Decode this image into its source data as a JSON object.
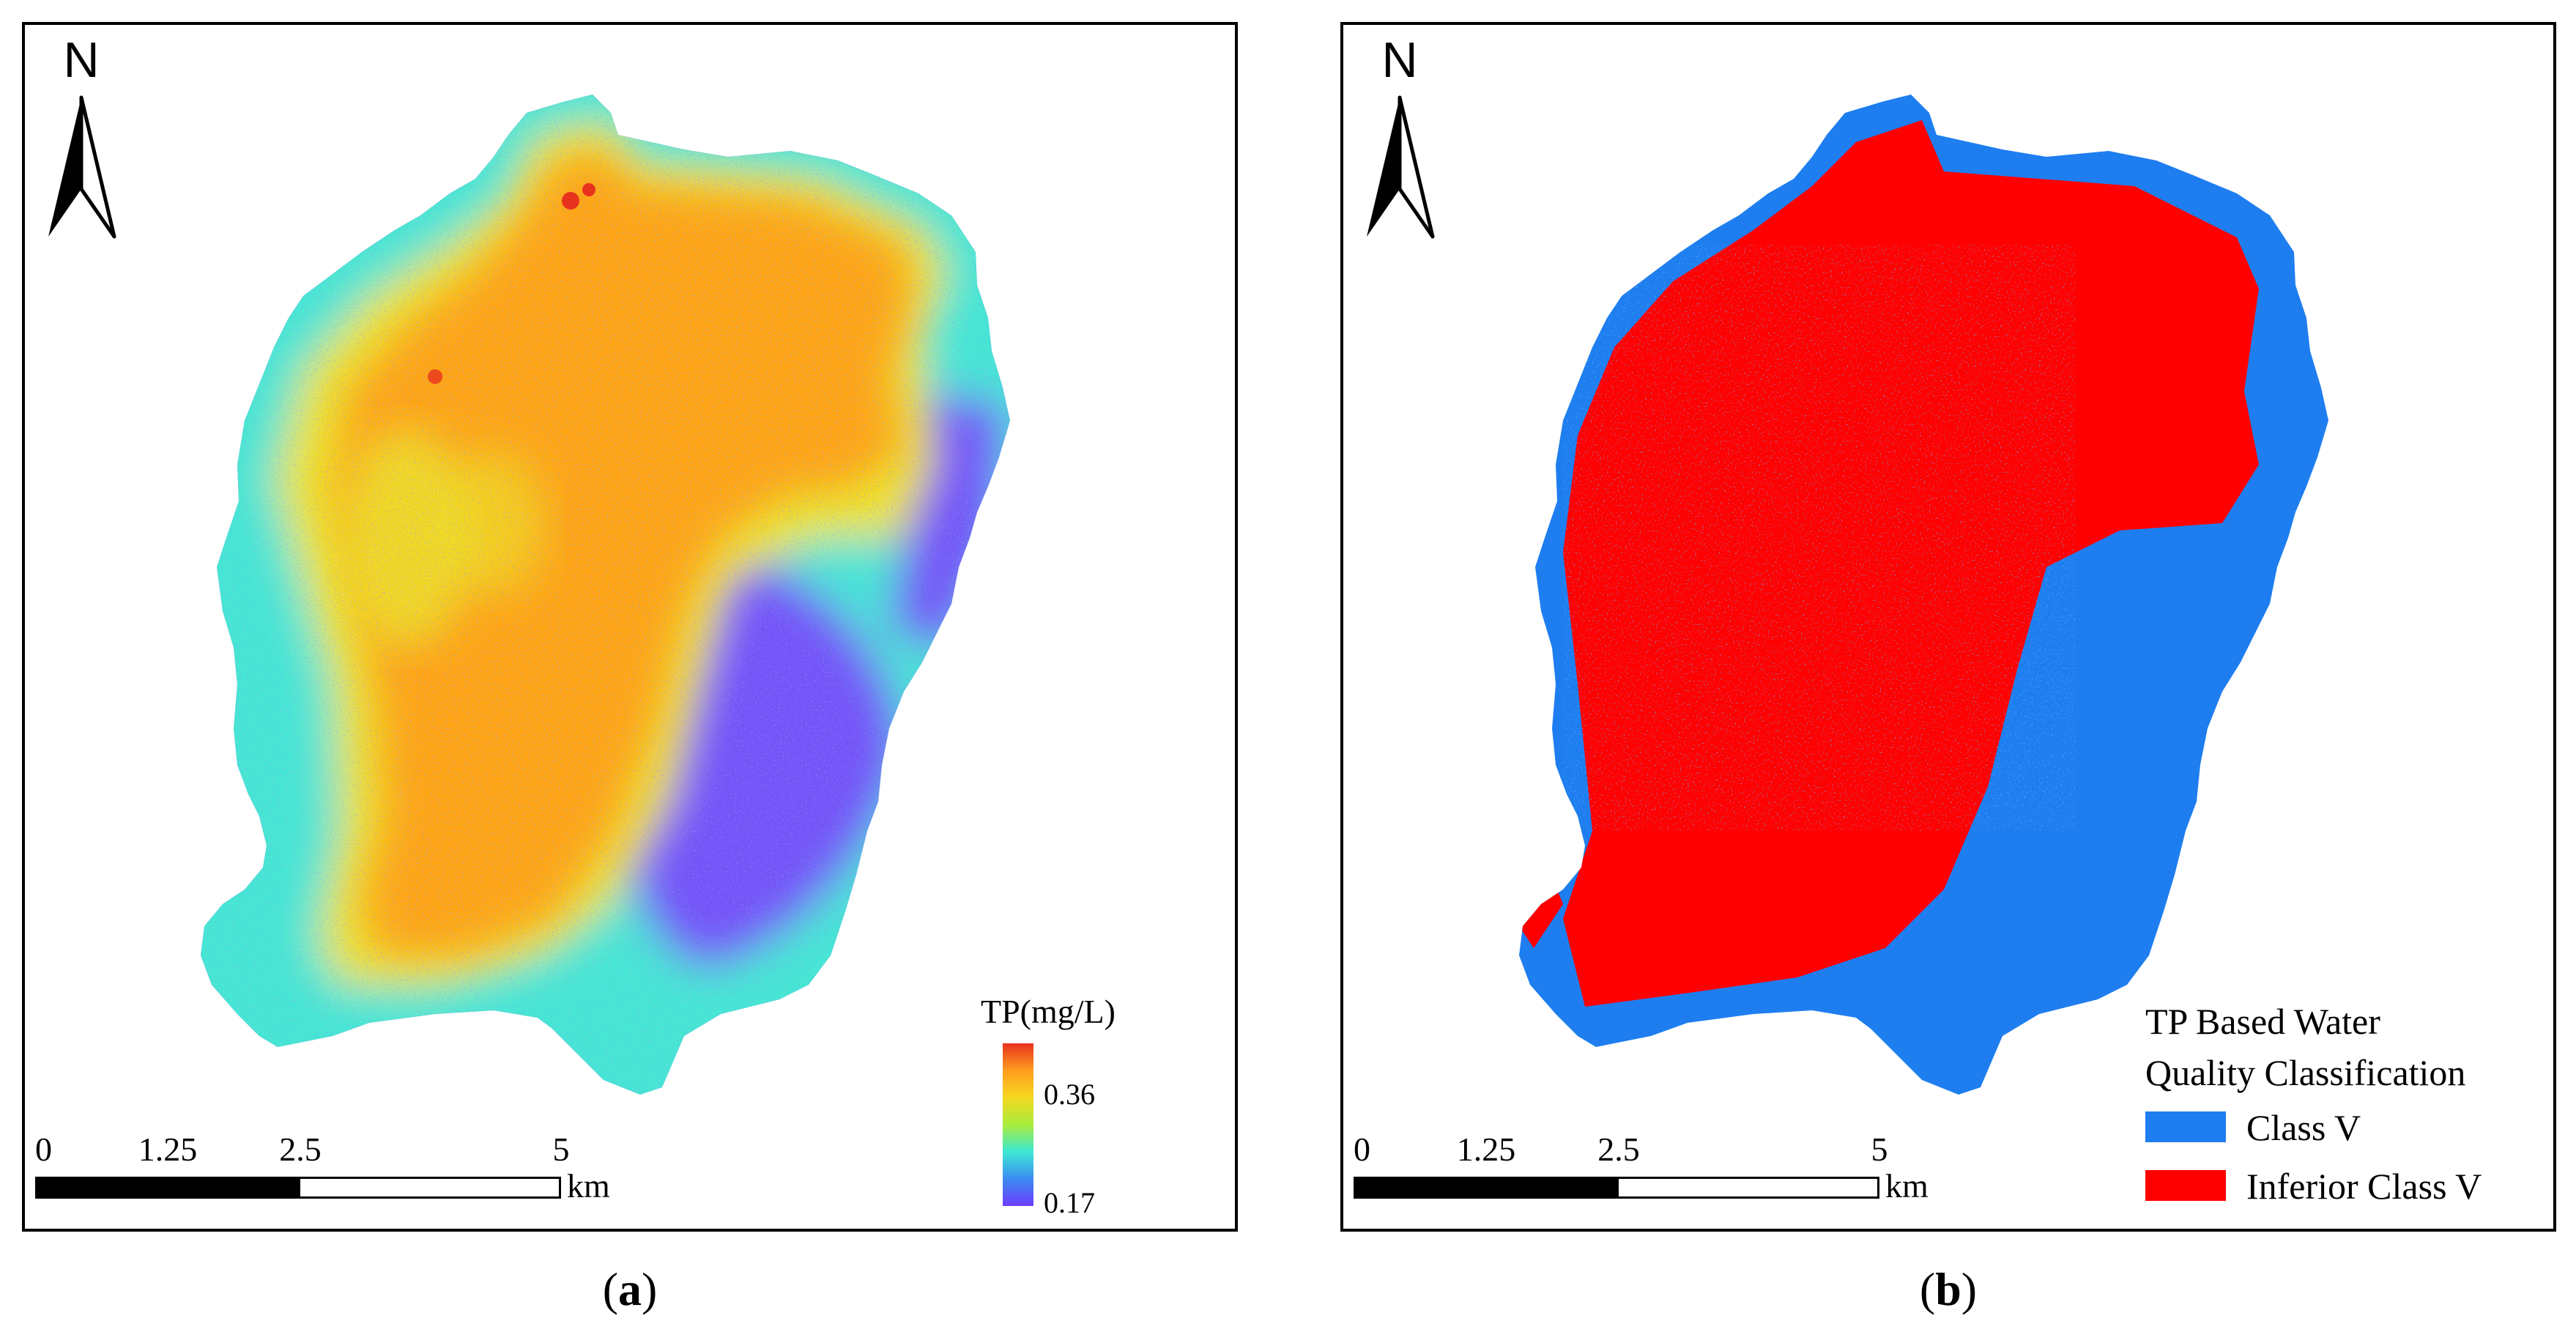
{
  "panels": {
    "a": {
      "caption_letter": "a",
      "north_label": "N",
      "scale": {
        "ticks": [
          "0",
          "1.25",
          "2.5",
          "5"
        ],
        "unit": "km"
      },
      "legend": {
        "title": "TP(mg/L)",
        "max_label": "0.36",
        "min_label": "0.17",
        "gradient_colors": [
          "#e8321e",
          "#ff9c1e",
          "#f5d820",
          "#a8ec3c",
          "#3ce8d2",
          "#3c8cf2",
          "#6c3cff"
        ]
      }
    },
    "b": {
      "caption_letter": "b",
      "north_label": "N",
      "scale": {
        "ticks": [
          "0",
          "1.25",
          "2.5",
          "5"
        ],
        "unit": "km"
      },
      "legend": {
        "title_line1": "TP Based Water",
        "title_line2": "Quality Classification",
        "classes": [
          {
            "label": "Class V",
            "color": "#1e7ef0"
          },
          {
            "label": "Inferior Class V",
            "color": "#ff0000"
          }
        ]
      }
    }
  },
  "colors": {
    "orange": "#ffa512",
    "yellow": "#eee42a",
    "cyan": "#46e6d4",
    "blue": "#3c8cf2",
    "violet": "#7454f8",
    "red": "#ff0000",
    "class_blue": "#1e7ef0"
  }
}
